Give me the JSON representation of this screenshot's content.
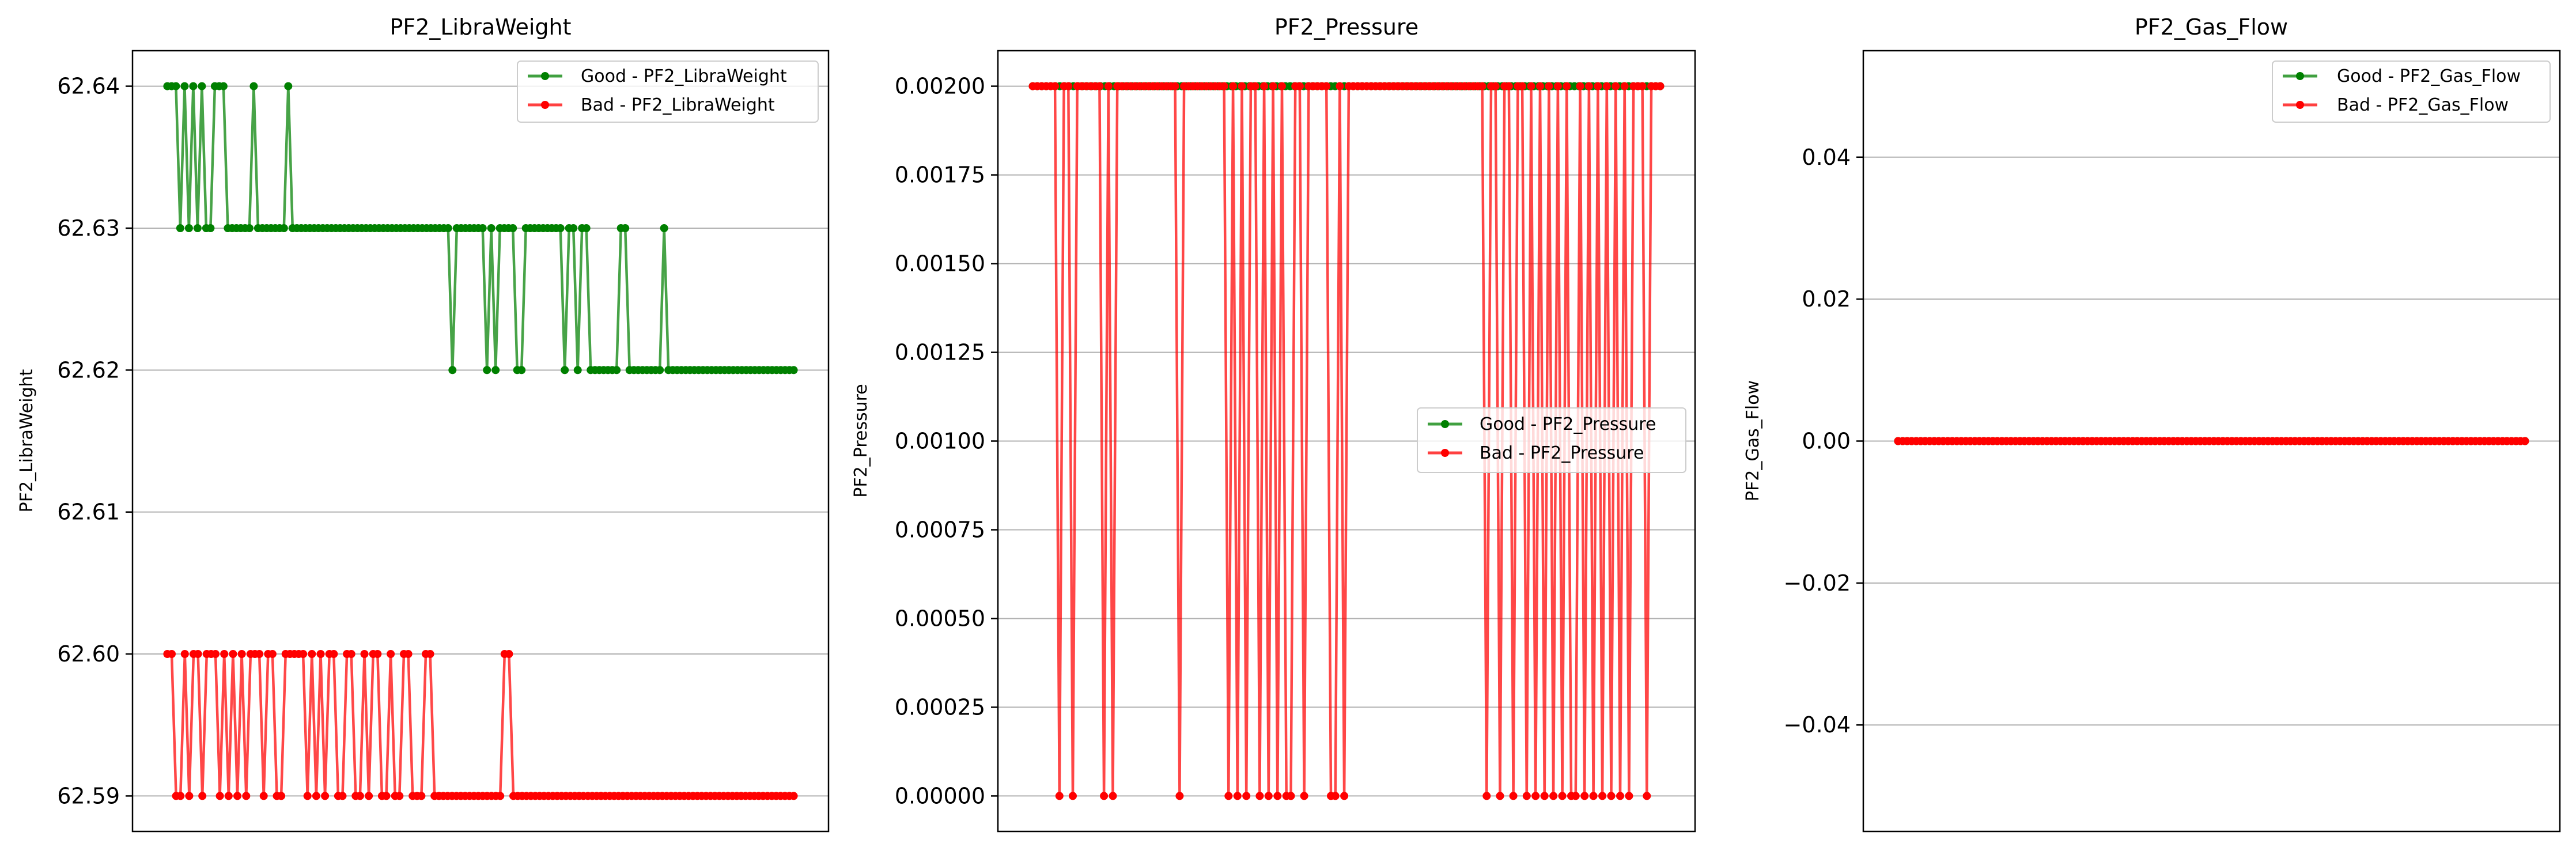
{
  "colors": {
    "good": "#008000",
    "bad": "#ff0000",
    "grid": "#b0b0b0",
    "axes": "#000000",
    "background": "#ffffff"
  },
  "chart_data": [
    {
      "type": "line",
      "title": "PF2_LibraWeight",
      "xlabel": "",
      "ylabel": "PF2_LibraWeight",
      "ylim": [
        62.5875,
        62.6425
      ],
      "yticks": [
        62.59,
        62.6,
        62.61,
        62.62,
        62.63,
        62.64
      ],
      "ytick_labels": [
        "62.59",
        "62.60",
        "62.61",
        "62.62",
        "62.63",
        "62.64"
      ],
      "grid": "y",
      "legend": {
        "loc": "upper right",
        "entries": [
          "Good - PF2_LibraWeight",
          "Bad - PF2_LibraWeight"
        ]
      },
      "series": [
        {
          "name": "Good - PF2_LibraWeight",
          "color": "#008000",
          "values": [
            62.64,
            62.64,
            62.64,
            62.63,
            62.64,
            62.63,
            62.64,
            62.63,
            62.64,
            62.63,
            62.63,
            62.64,
            62.64,
            62.64,
            62.63,
            62.63,
            62.63,
            62.63,
            62.63,
            62.63,
            62.64,
            62.63,
            62.63,
            62.63,
            62.63,
            62.63,
            62.63,
            62.63,
            62.64,
            62.63,
            62.63,
            62.63,
            62.63,
            62.63,
            62.63,
            62.63,
            62.63,
            62.63,
            62.63,
            62.63,
            62.63,
            62.63,
            62.63,
            62.63,
            62.63,
            62.63,
            62.63,
            62.63,
            62.63,
            62.63,
            62.63,
            62.63,
            62.63,
            62.63,
            62.63,
            62.63,
            62.63,
            62.63,
            62.63,
            62.63,
            62.63,
            62.63,
            62.63,
            62.63,
            62.63,
            62.63,
            62.62,
            62.63,
            62.63,
            62.63,
            62.63,
            62.63,
            62.63,
            62.63,
            62.62,
            62.63,
            62.62,
            62.63,
            62.63,
            62.63,
            62.63,
            62.62,
            62.62,
            62.63,
            62.63,
            62.63,
            62.63,
            62.63,
            62.63,
            62.63,
            62.63,
            62.63,
            62.62,
            62.63,
            62.63,
            62.62,
            62.63,
            62.63,
            62.62,
            62.62,
            62.62,
            62.62,
            62.62,
            62.62,
            62.62,
            62.63,
            62.63,
            62.62,
            62.62,
            62.62,
            62.62,
            62.62,
            62.62,
            62.62,
            62.62,
            62.63,
            62.62,
            62.62,
            62.62,
            62.62,
            62.62,
            62.62,
            62.62,
            62.62,
            62.62,
            62.62,
            62.62,
            62.62,
            62.62,
            62.62,
            62.62,
            62.62,
            62.62,
            62.62,
            62.62,
            62.62,
            62.62,
            62.62,
            62.62,
            62.62,
            62.62,
            62.62,
            62.62,
            62.62,
            62.62,
            62.62
          ]
        },
        {
          "name": "Bad - PF2_LibraWeight",
          "color": "#ff0000",
          "values": [
            62.6,
            62.6,
            62.59,
            62.59,
            62.6,
            62.59,
            62.6,
            62.6,
            62.59,
            62.6,
            62.6,
            62.6,
            62.59,
            62.6,
            62.59,
            62.6,
            62.59,
            62.6,
            62.59,
            62.6,
            62.6,
            62.6,
            62.59,
            62.6,
            62.6,
            62.59,
            62.59,
            62.6,
            62.6,
            62.6,
            62.6,
            62.6,
            62.59,
            62.6,
            62.59,
            62.6,
            62.59,
            62.6,
            62.6,
            62.59,
            62.59,
            62.6,
            62.6,
            62.59,
            62.59,
            62.6,
            62.59,
            62.6,
            62.6,
            62.59,
            62.59,
            62.6,
            62.59,
            62.59,
            62.6,
            62.6,
            62.59,
            62.59,
            62.59,
            62.6,
            62.6,
            62.59,
            62.59,
            62.59,
            62.59,
            62.59,
            62.59,
            62.59,
            62.59,
            62.59,
            62.59,
            62.59,
            62.59,
            62.59,
            62.59,
            62.59,
            62.59,
            62.6,
            62.6,
            62.59,
            62.59,
            62.59,
            62.59,
            62.59,
            62.59,
            62.59,
            62.59,
            62.59,
            62.59,
            62.59,
            62.59,
            62.59,
            62.59,
            62.59,
            62.59,
            62.59,
            62.59,
            62.59,
            62.59,
            62.59,
            62.59,
            62.59,
            62.59,
            62.59,
            62.59,
            62.59,
            62.59,
            62.59,
            62.59,
            62.59,
            62.59,
            62.59,
            62.59,
            62.59,
            62.59,
            62.59,
            62.59,
            62.59,
            62.59,
            62.59,
            62.59,
            62.59,
            62.59,
            62.59,
            62.59,
            62.59,
            62.59,
            62.59,
            62.59,
            62.59,
            62.59,
            62.59,
            62.59,
            62.59,
            62.59,
            62.59,
            62.59,
            62.59,
            62.59,
            62.59,
            62.59,
            62.59,
            62.59,
            62.59
          ]
        }
      ]
    },
    {
      "type": "line",
      "title": "PF2_Pressure",
      "xlabel": "",
      "ylabel": "PF2_Pressure",
      "ylim": [
        -0.0001,
        0.0021
      ],
      "yticks": [
        0,
        0.00025,
        0.0005,
        0.00075,
        0.001,
        0.00125,
        0.0015,
        0.00175,
        0.002
      ],
      "ytick_labels": [
        "0.00000",
        "0.00025",
        "0.00050",
        "0.00075",
        "0.00100",
        "0.00125",
        "0.00150",
        "0.00175",
        "0.00200"
      ],
      "grid": "y",
      "legend": {
        "loc": "center right",
        "entries": [
          "Good - PF2_Pressure",
          "Bad - PF2_Pressure"
        ]
      },
      "series": [
        {
          "name": "Good - PF2_Pressure",
          "color": "#008000",
          "values": [
            0.002,
            0.002,
            0.002,
            0.002,
            0.002,
            0.002,
            0.002,
            0.002,
            0.002,
            0.002,
            0.002,
            0.002,
            0.002,
            0.002,
            0.002,
            0.002,
            0.002,
            0.002,
            0.002,
            0.002,
            0.002,
            0.002,
            0.002,
            0.002,
            0.002,
            0.002,
            0.002,
            0.002,
            0.002,
            0.002,
            0.002,
            0.002,
            0.002,
            0.002,
            0.002,
            0.002,
            0.002,
            0.002,
            0.002,
            0.002,
            0.002,
            0.002,
            0.002,
            0.002,
            0.002,
            0.002,
            0.002,
            0.002,
            0.002,
            0.002,
            0.002,
            0.002,
            0.002,
            0.002,
            0.002,
            0.002,
            0.002,
            0.002,
            0.002,
            0.002,
            0.002,
            0.002,
            0.002,
            0.002,
            0.002,
            0.002,
            0.002,
            0.002,
            0.002,
            0.002,
            0.002,
            0.002,
            0.002,
            0.002,
            0.002,
            0.002,
            0.002,
            0.002,
            0.002,
            0.002,
            0.002,
            0.002,
            0.002,
            0.002,
            0.002,
            0.002,
            0.002,
            0.002,
            0.002,
            0.002,
            0.002,
            0.002,
            0.002,
            0.002,
            0.002,
            0.002,
            0.002,
            0.002,
            0.002,
            0.002,
            0.002,
            0.002,
            0.002,
            0.002,
            0.002,
            0.002,
            0.002,
            0.002,
            0.002,
            0.002,
            0.002,
            0.002,
            0.002,
            0.002,
            0.002,
            0.002,
            0.002,
            0.002,
            0.002,
            0.002,
            0.002,
            0.002,
            0.002,
            0.002,
            0.002,
            0.002,
            0.002,
            0.002,
            0.002,
            0.002,
            0.002,
            0.002,
            0.002,
            0.002,
            0.002,
            0.002,
            0.002,
            0.002,
            0.002,
            0.002
          ]
        },
        {
          "name": "Bad - PF2_Pressure",
          "color": "#ff0000",
          "values": [
            0.002,
            0.002,
            0.002,
            0.002,
            0.002,
            0.002,
            0,
            0.002,
            0.002,
            0,
            0.002,
            0.002,
            0.002,
            0.002,
            0.002,
            0.002,
            0,
            0.002,
            0,
            0.002,
            0.002,
            0.002,
            0.002,
            0.002,
            0.002,
            0.002,
            0.002,
            0.002,
            0.002,
            0.002,
            0.002,
            0.002,
            0.002,
            0,
            0.002,
            0.002,
            0.002,
            0.002,
            0.002,
            0.002,
            0.002,
            0.002,
            0.002,
            0.002,
            0,
            0.002,
            0,
            0.002,
            0,
            0.002,
            0.002,
            0,
            0.002,
            0,
            0.002,
            0,
            0.002,
            0,
            0,
            0.002,
            0.002,
            0,
            0.002,
            0.002,
            0.002,
            0.002,
            0.002,
            0,
            0,
            0.002,
            0,
            0.002,
            0.002,
            0.002,
            0.002,
            0.002,
            0.002,
            0.002,
            0.002,
            0.002,
            0.002,
            0.002,
            0.002,
            0.002,
            0.002,
            0.002,
            0.002,
            0.002,
            0.002,
            0.002,
            0.002,
            0.002,
            0.002,
            0.002,
            0.002,
            0.002,
            0.002,
            0.002,
            0.002,
            0.002,
            0.002,
            0.002,
            0,
            0.002,
            0.002,
            0,
            0.002,
            0.002,
            0,
            0.002,
            0.002,
            0,
            0.002,
            0,
            0.002,
            0,
            0.002,
            0,
            0.002,
            0,
            0.002,
            0,
            0,
            0.002,
            0,
            0.002,
            0,
            0.002,
            0,
            0.002,
            0,
            0.002,
            0,
            0.002,
            0,
            0.002,
            0.002,
            0.002,
            0,
            0.002,
            0.002,
            0.002
          ]
        }
      ]
    },
    {
      "type": "line",
      "title": "PF2_Gas_Flow",
      "xlabel": "",
      "ylabel": "PF2_Gas_Flow",
      "ylim": [
        -0.055,
        0.055
      ],
      "yticks": [
        -0.04,
        -0.02,
        0,
        0.02,
        0.04
      ],
      "ytick_labels": [
        "−0.04",
        "−0.02",
        "0.00",
        "0.02",
        "0.04"
      ],
      "grid": "y",
      "legend": {
        "loc": "upper right",
        "entries": [
          "Good - PF2_Gas_Flow",
          "Bad - PF2_Gas_Flow"
        ]
      },
      "series": [
        {
          "name": "Good - PF2_Gas_Flow",
          "color": "#008000",
          "values": [
            0,
            0,
            0,
            0,
            0,
            0,
            0,
            0,
            0,
            0,
            0,
            0,
            0,
            0,
            0,
            0,
            0,
            0,
            0,
            0,
            0,
            0,
            0,
            0,
            0,
            0,
            0,
            0,
            0,
            0,
            0,
            0,
            0,
            0,
            0,
            0,
            0,
            0,
            0,
            0,
            0,
            0,
            0,
            0,
            0,
            0,
            0,
            0,
            0,
            0,
            0,
            0,
            0,
            0,
            0,
            0,
            0,
            0,
            0,
            0,
            0,
            0,
            0,
            0,
            0,
            0,
            0,
            0,
            0,
            0,
            0,
            0,
            0,
            0,
            0,
            0,
            0,
            0,
            0,
            0,
            0,
            0,
            0,
            0,
            0,
            0,
            0,
            0,
            0,
            0,
            0,
            0,
            0,
            0,
            0,
            0,
            0,
            0,
            0,
            0,
            0,
            0,
            0,
            0,
            0,
            0,
            0,
            0,
            0,
            0,
            0,
            0,
            0,
            0,
            0,
            0,
            0,
            0,
            0,
            0,
            0,
            0,
            0,
            0,
            0,
            0,
            0,
            0,
            0,
            0,
            0,
            0,
            0,
            0,
            0,
            0,
            0,
            0,
            0,
            0
          ]
        },
        {
          "name": "Bad - PF2_Gas_Flow",
          "color": "#ff0000",
          "values": [
            0,
            0,
            0,
            0,
            0,
            0,
            0,
            0,
            0,
            0,
            0,
            0,
            0,
            0,
            0,
            0,
            0,
            0,
            0,
            0,
            0,
            0,
            0,
            0,
            0,
            0,
            0,
            0,
            0,
            0,
            0,
            0,
            0,
            0,
            0,
            0,
            0,
            0,
            0,
            0,
            0,
            0,
            0,
            0,
            0,
            0,
            0,
            0,
            0,
            0,
            0,
            0,
            0,
            0,
            0,
            0,
            0,
            0,
            0,
            0,
            0,
            0,
            0,
            0,
            0,
            0,
            0,
            0,
            0,
            0,
            0,
            0,
            0,
            0,
            0,
            0,
            0,
            0,
            0,
            0,
            0,
            0,
            0,
            0,
            0,
            0,
            0,
            0,
            0,
            0,
            0,
            0,
            0,
            0,
            0,
            0,
            0,
            0,
            0,
            0,
            0,
            0,
            0,
            0,
            0,
            0,
            0,
            0,
            0,
            0,
            0,
            0,
            0,
            0,
            0,
            0,
            0,
            0,
            0,
            0,
            0,
            0,
            0,
            0,
            0,
            0,
            0,
            0,
            0,
            0,
            0,
            0,
            0,
            0,
            0,
            0,
            0,
            0,
            0,
            0
          ]
        }
      ]
    }
  ]
}
